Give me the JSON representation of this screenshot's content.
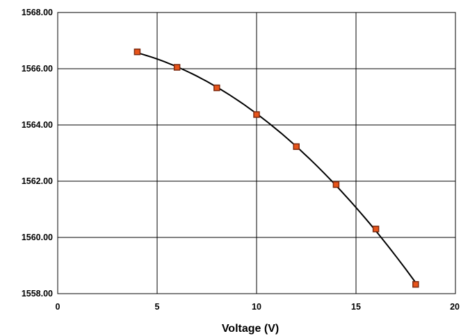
{
  "chart_data": {
    "type": "scatter",
    "title": "",
    "xlabel": "Voltage  (V)",
    "ylabel": "",
    "xlim": [
      0,
      20
    ],
    "ylim": [
      1558,
      1568
    ],
    "x_ticks": [
      0,
      5,
      10,
      15,
      20
    ],
    "y_ticks": [
      1558,
      1560,
      1562,
      1564,
      1566,
      1568
    ],
    "x_tick_labels": [
      "0",
      "5",
      "10",
      "15",
      "20"
    ],
    "y_tick_labels": [
      "1558.00",
      "1560.00",
      "1562.00",
      "1564.00",
      "1566.00",
      "1568.00"
    ],
    "grid": true,
    "trendline": true,
    "marker_color": "#e8541a",
    "marker_edge_color": "#7a2a10",
    "line_color": "#000000",
    "series": [
      {
        "x": [
          4,
          6,
          8,
          10,
          12,
          14,
          16,
          18
        ],
        "y": [
          1566.6,
          1566.05,
          1565.32,
          1564.37,
          1563.23,
          1561.88,
          1560.3,
          1558.33
        ]
      }
    ]
  }
}
